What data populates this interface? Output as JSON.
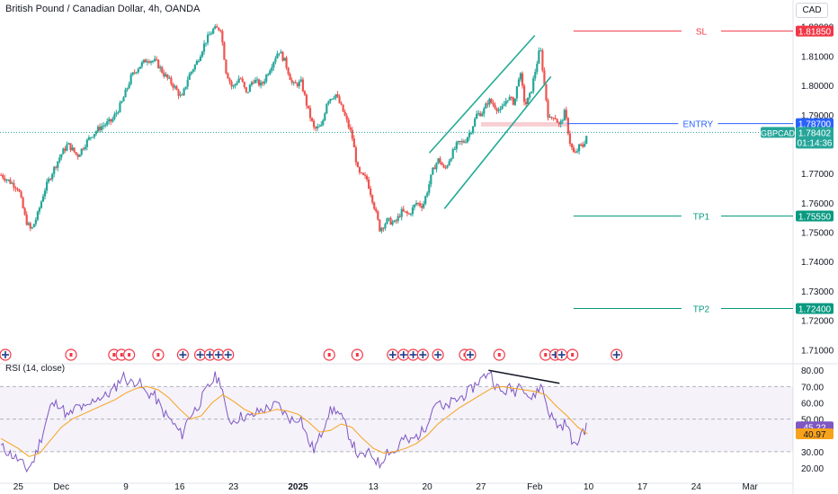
{
  "header": {
    "title": "British Pound / Canadian Dollar, 4h, OANDA",
    "currency": "CAD"
  },
  "colors": {
    "up": "#26a69a",
    "down": "#ef5350",
    "channel": "#22ab94",
    "sl": "#f23645",
    "tp": "#089981",
    "entry": "#2962ff",
    "rsi": "#7e57c2",
    "rsi_ma": "#f7a21b",
    "zone": "#f7c6cb"
  },
  "chart_data": {
    "type": "candlestick",
    "symbol": "GBPCAD",
    "ylim": [
      1.7055,
      1.8245
    ],
    "price_axis_ticks": [
      "1.82000",
      "1.81000",
      "1.80000",
      "1.79000",
      "1.77000",
      "1.76000",
      "1.75000",
      "1.74000",
      "1.73000",
      "1.72000",
      "1.71000"
    ],
    "time_axis_ticks": [
      {
        "label": "25",
        "x": 0
      },
      {
        "label": "Dec",
        "x": 4
      },
      {
        "label": "9",
        "x": 10
      },
      {
        "label": "16",
        "x": 15
      },
      {
        "label": "23",
        "x": 20
      },
      {
        "label": "2025",
        "x": 26
      },
      {
        "label": "13",
        "x": 33
      },
      {
        "label": "20",
        "x": 38
      },
      {
        "label": "27",
        "x": 43
      },
      {
        "label": "Feb",
        "x": 48
      },
      {
        "label": "10",
        "x": 53
      },
      {
        "label": "17",
        "x": 58
      },
      {
        "label": "24",
        "x": 63
      },
      {
        "label": "Mar",
        "x": 68
      }
    ],
    "x_range": [
      -1.7,
      72
    ],
    "path": [
      [
        -1.6,
        1.7695
      ],
      [
        0,
        1.765
      ],
      [
        0.7,
        1.754
      ],
      [
        1.2,
        1.7505
      ],
      [
        1.8,
        1.756
      ],
      [
        2.4,
        1.764
      ],
      [
        3.1,
        1.77
      ],
      [
        3.9,
        1.776
      ],
      [
        4.6,
        1.78
      ],
      [
        5.5,
        1.776
      ],
      [
        6.2,
        1.78
      ],
      [
        6.8,
        1.783
      ],
      [
        7.7,
        1.786
      ],
      [
        8.7,
        1.788
      ],
      [
        9.6,
        1.794
      ],
      [
        10.5,
        1.803
      ],
      [
        11.1,
        1.806
      ],
      [
        12.0,
        1.809
      ],
      [
        12.8,
        1.808
      ],
      [
        13.5,
        1.804
      ],
      [
        14.4,
        1.8
      ],
      [
        15.2,
        1.7955
      ],
      [
        15.8,
        1.803
      ],
      [
        16.6,
        1.808
      ],
      [
        17.4,
        1.815
      ],
      [
        18.1,
        1.819
      ],
      [
        18.8,
        1.8195
      ],
      [
        19.3,
        1.805
      ],
      [
        19.9,
        1.799
      ],
      [
        20.6,
        1.803
      ],
      [
        21.2,
        1.797
      ],
      [
        21.8,
        1.802
      ],
      [
        22.6,
        1.8
      ],
      [
        23.4,
        1.806
      ],
      [
        24.2,
        1.812
      ],
      [
        24.8,
        1.808
      ],
      [
        25.5,
        1.8
      ],
      [
        26.3,
        1.801
      ],
      [
        26.9,
        1.792
      ],
      [
        27.5,
        1.785
      ],
      [
        28.2,
        1.786
      ],
      [
        28.7,
        1.795
      ],
      [
        29.5,
        1.797
      ],
      [
        30.2,
        1.791
      ],
      [
        31.0,
        1.783
      ],
      [
        31.6,
        1.77
      ],
      [
        32.4,
        1.768
      ],
      [
        33.0,
        1.76
      ],
      [
        33.6,
        1.751
      ],
      [
        34.3,
        1.754
      ],
      [
        35.0,
        1.753
      ],
      [
        35.6,
        1.757
      ],
      [
        36.3,
        1.756
      ],
      [
        37.0,
        1.76
      ],
      [
        37.6,
        1.759
      ],
      [
        38.0,
        1.764
      ],
      [
        38.6,
        1.772
      ],
      [
        39.1,
        1.775
      ],
      [
        39.6,
        1.771
      ],
      [
        40.2,
        1.776
      ],
      [
        40.8,
        1.78
      ],
      [
        41.5,
        1.781
      ],
      [
        42.1,
        1.785
      ],
      [
        42.6,
        1.79
      ],
      [
        43.2,
        1.791
      ],
      [
        43.7,
        1.795
      ],
      [
        44.3,
        1.793
      ],
      [
        44.8,
        1.791
      ],
      [
        45.5,
        1.796
      ],
      [
        46.1,
        1.794
      ],
      [
        46.6,
        1.805
      ],
      [
        47.1,
        1.793
      ],
      [
        47.6,
        1.797
      ],
      [
        48.1,
        1.806
      ],
      [
        48.5,
        1.813
      ],
      [
        48.9,
        1.8
      ],
      [
        49.3,
        1.788
      ],
      [
        49.8,
        1.79
      ],
      [
        50.3,
        1.786
      ],
      [
        50.8,
        1.791
      ],
      [
        51.3,
        1.78
      ],
      [
        51.7,
        1.776
      ],
      [
        52.1,
        1.779
      ],
      [
        52.5,
        1.7795
      ],
      [
        52.9,
        1.784
      ]
    ],
    "drawings": {
      "channel_upper": {
        "from": [
          38.2,
          1.777
        ],
        "to": [
          48.0,
          1.817
        ]
      },
      "channel_lower": {
        "from": [
          39.6,
          1.758
        ],
        "to": [
          49.5,
          1.803
        ]
      },
      "entry_zone": {
        "x": [
          43.0,
          51.0
        ],
        "y": [
          1.786,
          1.7875
        ]
      },
      "h_levels_x_start": 51.6
    },
    "levels": [
      {
        "name": "SL",
        "value": 1.8185,
        "label": "1.81850",
        "role": "sl"
      },
      {
        "name": "ENTRY",
        "value": 1.787,
        "label": "1.78700",
        "role": "entry"
      },
      {
        "name": "TP1",
        "value": 1.7555,
        "label": "1.75550",
        "role": "tp"
      },
      {
        "name": "TP2",
        "value": 1.724,
        "label": "1.72400",
        "role": "tp"
      }
    ],
    "current_price": {
      "symbol": "GBPCAD",
      "value": 1.78402,
      "label": "1.78402",
      "countdown": "01:14:36"
    },
    "event_flags": [
      {
        "x": -1.2,
        "type": "gb"
      },
      {
        "x": 4.9,
        "type": "ca"
      },
      {
        "x": 8.9,
        "type": "ca"
      },
      {
        "x": 9.6,
        "type": "ca"
      },
      {
        "x": 10.3,
        "type": "ca"
      },
      {
        "x": 13.0,
        "type": "ca"
      },
      {
        "x": 15.3,
        "type": "gb"
      },
      {
        "x": 16.9,
        "type": "gb"
      },
      {
        "x": 17.8,
        "type": "gb"
      },
      {
        "x": 18.6,
        "type": "gb"
      },
      {
        "x": 19.5,
        "type": "gb"
      },
      {
        "x": 28.9,
        "type": "ca"
      },
      {
        "x": 31.5,
        "type": "ca"
      },
      {
        "x": 34.8,
        "type": "gb"
      },
      {
        "x": 35.8,
        "type": "gb"
      },
      {
        "x": 36.7,
        "type": "gb"
      },
      {
        "x": 37.6,
        "type": "gb"
      },
      {
        "x": 39.0,
        "type": "gb"
      },
      {
        "x": 41.5,
        "type": "ca"
      },
      {
        "x": 42.0,
        "type": "gb"
      },
      {
        "x": 44.7,
        "type": "ca"
      },
      {
        "x": 49.0,
        "type": "ca"
      },
      {
        "x": 49.9,
        "type": "gb"
      },
      {
        "x": 50.5,
        "type": "gb"
      },
      {
        "x": 51.5,
        "type": "ca"
      },
      {
        "x": 55.6,
        "type": "gb"
      }
    ],
    "rsi": {
      "title": "RSI (14, close)",
      "ylim": [
        15,
        84
      ],
      "axis_ticks": [
        "80.00",
        "70.00",
        "60.00",
        "50.00",
        "30.00",
        "20.00"
      ],
      "bands": [
        30,
        70
      ],
      "middle": 50,
      "value": 45.22,
      "value_label": "45.22",
      "ma_value": 40.97,
      "ma_label": "40.97",
      "path": [
        [
          -1.6,
          33
        ],
        [
          0,
          25
        ],
        [
          0.8,
          19
        ],
        [
          1.4,
          24
        ],
        [
          2.2,
          40
        ],
        [
          3.0,
          58
        ],
        [
          3.8,
          60
        ],
        [
          4.6,
          51
        ],
        [
          5.5,
          58
        ],
        [
          6.3,
          56
        ],
        [
          7.2,
          63
        ],
        [
          8.1,
          64
        ],
        [
          9.0,
          69
        ],
        [
          9.7,
          77
        ],
        [
          10.4,
          72
        ],
        [
          11.1,
          74
        ],
        [
          11.8,
          66
        ],
        [
          12.6,
          65
        ],
        [
          13.4,
          55
        ],
        [
          14.3,
          48
        ],
        [
          15.2,
          40
        ],
        [
          15.8,
          51
        ],
        [
          16.6,
          57
        ],
        [
          17.5,
          68
        ],
        [
          18.3,
          76
        ],
        [
          18.9,
          72
        ],
        [
          19.4,
          50
        ],
        [
          20.0,
          49
        ],
        [
          20.8,
          52
        ],
        [
          21.6,
          51
        ],
        [
          22.4,
          55
        ],
        [
          23.3,
          57
        ],
        [
          24.1,
          59
        ],
        [
          24.9,
          52
        ],
        [
          25.6,
          49
        ],
        [
          26.2,
          52
        ],
        [
          26.9,
          37
        ],
        [
          27.5,
          31
        ],
        [
          28.1,
          40
        ],
        [
          28.8,
          54
        ],
        [
          29.5,
          56
        ],
        [
          30.2,
          49
        ],
        [
          31.0,
          36
        ],
        [
          31.7,
          26
        ],
        [
          32.5,
          29
        ],
        [
          33.0,
          27
        ],
        [
          33.6,
          22
        ],
        [
          34.3,
          31
        ],
        [
          35.0,
          29
        ],
        [
          35.7,
          38
        ],
        [
          36.4,
          36
        ],
        [
          37.1,
          40
        ],
        [
          37.7,
          43
        ],
        [
          38.3,
          54
        ],
        [
          38.9,
          62
        ],
        [
          39.5,
          55
        ],
        [
          40.2,
          60
        ],
        [
          40.8,
          62
        ],
        [
          41.5,
          65
        ],
        [
          42.1,
          68
        ],
        [
          42.7,
          73
        ],
        [
          43.3,
          76
        ],
        [
          43.8,
          80
        ],
        [
          44.4,
          70
        ],
        [
          45.0,
          66
        ],
        [
          45.6,
          69
        ],
        [
          46.2,
          67
        ],
        [
          46.7,
          74
        ],
        [
          47.3,
          65
        ],
        [
          47.8,
          62
        ],
        [
          48.3,
          69
        ],
        [
          48.7,
          70
        ],
        [
          49.2,
          56
        ],
        [
          49.7,
          50
        ],
        [
          50.3,
          45
        ],
        [
          50.9,
          48
        ],
        [
          51.3,
          40
        ],
        [
          51.8,
          32
        ],
        [
          52.3,
          42
        ],
        [
          52.9,
          45
        ]
      ],
      "ma_path": [
        [
          -1.6,
          38
        ],
        [
          0,
          32
        ],
        [
          1.0,
          27
        ],
        [
          2.0,
          29
        ],
        [
          3.0,
          37
        ],
        [
          4.0,
          45
        ],
        [
          5.0,
          50
        ],
        [
          6.0,
          53
        ],
        [
          7.0,
          56
        ],
        [
          8.0,
          59
        ],
        [
          9.0,
          62
        ],
        [
          10.0,
          66
        ],
        [
          11.0,
          69
        ],
        [
          12.0,
          70
        ],
        [
          13.0,
          68
        ],
        [
          14.0,
          63
        ],
        [
          15.0,
          56
        ],
        [
          16.0,
          50
        ],
        [
          17.0,
          52
        ],
        [
          18.0,
          60
        ],
        [
          19.0,
          65
        ],
        [
          20.0,
          61
        ],
        [
          21.0,
          56
        ],
        [
          22.0,
          53
        ],
        [
          23.0,
          54
        ],
        [
          24.0,
          56
        ],
        [
          25.0,
          55
        ],
        [
          26.0,
          53
        ],
        [
          27.0,
          48
        ],
        [
          28.0,
          42
        ],
        [
          29.0,
          43
        ],
        [
          30.0,
          47
        ],
        [
          31.0,
          45
        ],
        [
          32.0,
          38
        ],
        [
          33.0,
          32
        ],
        [
          34.0,
          29
        ],
        [
          35.0,
          30
        ],
        [
          36.0,
          32
        ],
        [
          37.0,
          35
        ],
        [
          38.0,
          40
        ],
        [
          39.0,
          47
        ],
        [
          40.0,
          52
        ],
        [
          41.0,
          57
        ],
        [
          42.0,
          61
        ],
        [
          43.0,
          65
        ],
        [
          44.0,
          69
        ],
        [
          45.0,
          70
        ],
        [
          46.0,
          69
        ],
        [
          47.0,
          68
        ],
        [
          48.0,
          67
        ],
        [
          49.0,
          65
        ],
        [
          50.0,
          58
        ],
        [
          51.0,
          52
        ],
        [
          52.0,
          45
        ],
        [
          52.9,
          41
        ]
      ],
      "divergence": {
        "from": [
          43.7,
          80
        ],
        "to": [
          50.3,
          72
        ]
      }
    }
  }
}
